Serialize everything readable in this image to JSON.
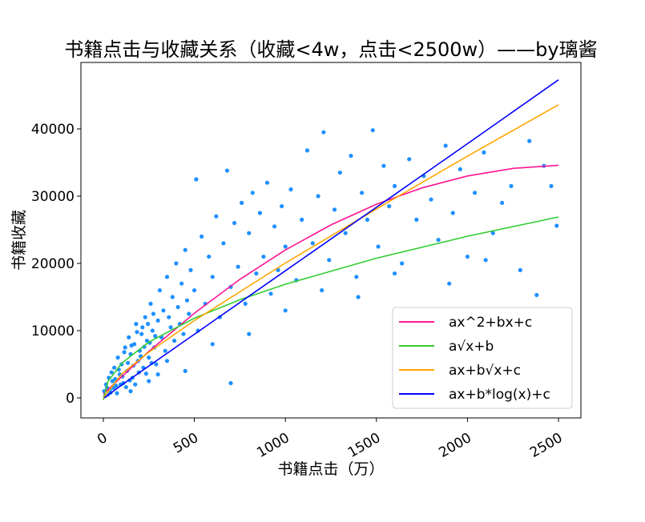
{
  "chart_data": {
    "type": "scatter",
    "title": "书籍点击与收藏关系（收藏<4w，点击<2500w）——by璃酱",
    "xlabel": "书籍点击（万）",
    "ylabel": "书籍收藏",
    "xlim": [
      -123,
      2623
    ],
    "ylim": [
      -2976,
      49880
    ],
    "xticks": [
      0,
      500,
      1000,
      1500,
      2000,
      2500
    ],
    "yticks": [
      0,
      10000,
      20000,
      30000,
      40000
    ],
    "grid": false,
    "legend_position": "lower-right",
    "scatter_color": "#1e90ff",
    "points": [
      [
        20,
        1500
      ],
      [
        30,
        3000
      ],
      [
        40,
        800
      ],
      [
        50,
        2500
      ],
      [
        60,
        4500
      ],
      [
        70,
        1800
      ],
      [
        80,
        6000
      ],
      [
        90,
        3500
      ],
      [
        100,
        5000
      ],
      [
        110,
        2200
      ],
      [
        120,
        7500
      ],
      [
        130,
        4000
      ],
      [
        140,
        9000
      ],
      [
        150,
        6500
      ],
      [
        160,
        3000
      ],
      [
        170,
        8000
      ],
      [
        180,
        11000
      ],
      [
        190,
        5500
      ],
      [
        200,
        7000
      ],
      [
        210,
        9500
      ],
      [
        220,
        4500
      ],
      [
        230,
        12000
      ],
      [
        240,
        8500
      ],
      [
        250,
        6000
      ],
      [
        260,
        14000
      ],
      [
        270,
        10000
      ],
      [
        280,
        7500
      ],
      [
        290,
        5000
      ],
      [
        300,
        11500
      ],
      [
        310,
        16000
      ],
      [
        320,
        9000
      ],
      [
        330,
        13000
      ],
      [
        340,
        7000
      ],
      [
        350,
        18000
      ],
      [
        360,
        12000
      ],
      [
        370,
        10500
      ],
      [
        380,
        15000
      ],
      [
        390,
        8500
      ],
      [
        400,
        20000
      ],
      [
        410,
        13500
      ],
      [
        420,
        11000
      ],
      [
        430,
        17000
      ],
      [
        440,
        9500
      ],
      [
        450,
        22000
      ],
      [
        460,
        14500
      ],
      [
        470,
        12500
      ],
      [
        480,
        19000
      ],
      [
        500,
        16000
      ],
      [
        510,
        32500
      ],
      [
        520,
        10000
      ],
      [
        540,
        24000
      ],
      [
        560,
        14000
      ],
      [
        580,
        21000
      ],
      [
        600,
        18000
      ],
      [
        620,
        27000
      ],
      [
        640,
        12000
      ],
      [
        660,
        23000
      ],
      [
        680,
        33800
      ],
      [
        700,
        16500
      ],
      [
        720,
        26000
      ],
      [
        740,
        19500
      ],
      [
        760,
        29000
      ],
      [
        780,
        14000
      ],
      [
        800,
        24500
      ],
      [
        820,
        30500
      ],
      [
        840,
        18500
      ],
      [
        860,
        27500
      ],
      [
        880,
        21000
      ],
      [
        900,
        32000
      ],
      [
        920,
        15500
      ],
      [
        940,
        25500
      ],
      [
        960,
        19000
      ],
      [
        980,
        28500
      ],
      [
        1000,
        22500
      ],
      [
        1030,
        31000
      ],
      [
        1060,
        17500
      ],
      [
        1090,
        26500
      ],
      [
        1120,
        36800
      ],
      [
        1150,
        23000
      ],
      [
        1180,
        30000
      ],
      [
        1210,
        39500
      ],
      [
        1240,
        20500
      ],
      [
        1270,
        28000
      ],
      [
        1300,
        33500
      ],
      [
        1330,
        24500
      ],
      [
        1360,
        36000
      ],
      [
        1390,
        18000
      ],
      [
        1420,
        30500
      ],
      [
        1450,
        26500
      ],
      [
        1480,
        39800
      ],
      [
        1510,
        22500
      ],
      [
        1540,
        34500
      ],
      [
        1570,
        28500
      ],
      [
        1600,
        31500
      ],
      [
        1640,
        20000
      ],
      [
        1680,
        35500
      ],
      [
        1720,
        26500
      ],
      [
        1760,
        33000
      ],
      [
        1800,
        29500
      ],
      [
        1840,
        23500
      ],
      [
        1880,
        37500
      ],
      [
        1920,
        27500
      ],
      [
        1960,
        34000
      ],
      [
        2000,
        21000
      ],
      [
        2040,
        30500
      ],
      [
        2090,
        36500
      ],
      [
        2140,
        24500
      ],
      [
        2190,
        29000
      ],
      [
        2240,
        31500
      ],
      [
        2290,
        19000
      ],
      [
        2340,
        38200
      ],
      [
        2380,
        15300
      ],
      [
        2420,
        34500
      ],
      [
        2460,
        31500
      ],
      [
        2490,
        25600
      ],
      [
        1000,
        13000
      ],
      [
        1200,
        16000
      ],
      [
        1400,
        15000
      ],
      [
        1600,
        18500
      ],
      [
        1900,
        17000
      ],
      [
        2100,
        20500
      ],
      [
        800,
        9500
      ],
      [
        600,
        8000
      ],
      [
        450,
        4000
      ],
      [
        300,
        3500
      ],
      [
        700,
        2200
      ],
      [
        150,
        1000
      ],
      [
        250,
        2500
      ],
      [
        350,
        5500
      ],
      [
        10,
        300
      ],
      [
        5,
        1000
      ],
      [
        15,
        2000
      ],
      [
        25,
        500
      ],
      [
        35,
        1200
      ],
      [
        45,
        3800
      ],
      [
        55,
        1500
      ],
      [
        65,
        2800
      ],
      [
        75,
        700
      ],
      [
        85,
        4200
      ],
      [
        95,
        2000
      ],
      [
        105,
        3200
      ],
      [
        115,
        6800
      ],
      [
        125,
        1600
      ],
      [
        135,
        5200
      ],
      [
        145,
        2600
      ],
      [
        155,
        7800
      ],
      [
        165,
        4800
      ],
      [
        175,
        2000
      ],
      [
        185,
        9800
      ],
      [
        195,
        3800
      ],
      [
        205,
        6200
      ],
      [
        215,
        10500
      ],
      [
        225,
        7600
      ],
      [
        235,
        3600
      ],
      [
        245,
        11000
      ],
      [
        255,
        8200
      ],
      [
        265,
        5200
      ],
      [
        275,
        12500
      ],
      [
        285,
        9200
      ]
    ],
    "series": [
      {
        "name": "ax^2+bx+c",
        "color": "#ff1493",
        "x": [
          0,
          250,
          500,
          750,
          1000,
          1250,
          1500,
          1750,
          2000,
          2250,
          2500
        ],
        "y": [
          600,
          6925,
          12600,
          17625,
          22000,
          25725,
          28800,
          31225,
          33000,
          34125,
          34600
        ]
      },
      {
        "name": "a√x+b",
        "color": "#32cd32",
        "x": [
          0,
          25,
          100,
          250,
          500,
          750,
          1000,
          1500,
          2000,
          2500
        ],
        "y": [
          -300,
          2420,
          5140,
          8300,
          11860,
          14600,
          16900,
          20770,
          24030,
          26900
        ]
      },
      {
        "name": "ax+b√x+c",
        "color": "#ffa500",
        "x": [
          0,
          100,
          250,
          500,
          1000,
          1500,
          2000,
          2500
        ],
        "y": [
          0,
          3544,
          6793,
          11500,
          20055,
          28100,
          35942,
          43600
        ]
      },
      {
        "name": "ax+b*log(x)+c",
        "color": "#0000ff",
        "x": [
          5,
          100,
          500,
          1000,
          1500,
          2000,
          2500
        ],
        "y": [
          0,
          1900,
          9460,
          18900,
          28350,
          37800,
          47300
        ]
      }
    ]
  }
}
